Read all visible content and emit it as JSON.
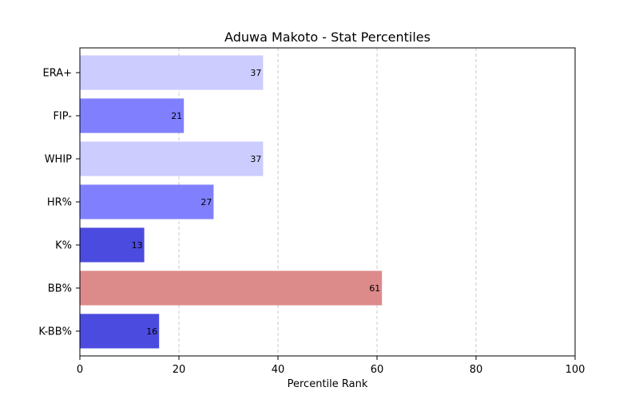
{
  "chart_data": {
    "type": "bar",
    "orientation": "horizontal",
    "title": "Aduwa Makoto - Stat Percentiles",
    "xlabel": "Percentile Rank",
    "ylabel": "",
    "xlim": [
      0,
      100
    ],
    "xticks": [
      "0",
      "20",
      "40",
      "60",
      "80",
      "100"
    ],
    "grid": "x-dashed",
    "categories": [
      "ERA+",
      "FIP-",
      "WHIP",
      "HR%",
      "K%",
      "BB%",
      "K-BB%"
    ],
    "values": [
      37,
      21,
      37,
      27,
      13,
      61,
      16
    ],
    "value_labels": [
      "37",
      "21",
      "37",
      "27",
      "13",
      "61",
      "16"
    ],
    "bar_colors": [
      "#ccccff",
      "#8080ff",
      "#ccccff",
      "#8080ff",
      "#4b4bdf",
      "#dd8a8a",
      "#4b4bdf"
    ]
  }
}
